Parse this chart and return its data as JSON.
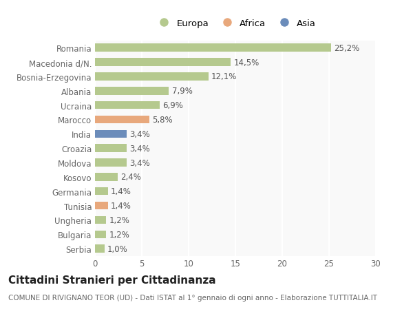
{
  "countries": [
    "Romania",
    "Macedonia d/N.",
    "Bosnia-Erzegovina",
    "Albania",
    "Ucraina",
    "Marocco",
    "India",
    "Croazia",
    "Moldova",
    "Kosovo",
    "Germania",
    "Tunisia",
    "Ungheria",
    "Bulgaria",
    "Serbia"
  ],
  "values": [
    25.2,
    14.5,
    12.1,
    7.9,
    6.9,
    5.8,
    3.4,
    3.4,
    3.4,
    2.4,
    1.4,
    1.4,
    1.2,
    1.2,
    1.0
  ],
  "labels": [
    "25,2%",
    "14,5%",
    "12,1%",
    "7,9%",
    "6,9%",
    "5,8%",
    "3,4%",
    "3,4%",
    "3,4%",
    "2,4%",
    "1,4%",
    "1,4%",
    "1,2%",
    "1,2%",
    "1,0%"
  ],
  "continents": [
    "Europa",
    "Europa",
    "Europa",
    "Europa",
    "Europa",
    "Africa",
    "Asia",
    "Europa",
    "Europa",
    "Europa",
    "Europa",
    "Africa",
    "Europa",
    "Europa",
    "Europa"
  ],
  "colors": {
    "Europa": "#b5c98e",
    "Africa": "#e8a87c",
    "Asia": "#6b8cba"
  },
  "legend_items": [
    "Europa",
    "Africa",
    "Asia"
  ],
  "xlim": [
    0,
    30
  ],
  "xticks": [
    0,
    5,
    10,
    15,
    20,
    25,
    30
  ],
  "title": "Cittadini Stranieri per Cittadinanza",
  "subtitle": "COMUNE DI RIVIGNANO TEOR (UD) - Dati ISTAT al 1° gennaio di ogni anno - Elaborazione TUTTITALIA.IT",
  "bg_color": "#ffffff",
  "plot_bg_color": "#f9f9f9",
  "grid_color": "#ffffff",
  "bar_height": 0.55,
  "label_fontsize": 8.5,
  "tick_fontsize": 8.5,
  "title_fontsize": 11,
  "subtitle_fontsize": 7.5
}
